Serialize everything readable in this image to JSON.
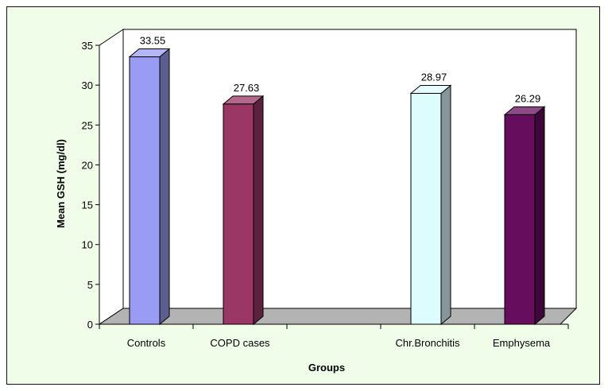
{
  "chart_data": {
    "type": "bar",
    "categories": [
      "Controls",
      "COPD cases",
      "",
      "Chr.Bronchitis",
      "Emphysema"
    ],
    "values": [
      33.55,
      27.63,
      null,
      28.97,
      26.29
    ],
    "value_labels": [
      "33.55",
      "27.63",
      "",
      "28.97",
      "26.29"
    ],
    "colors": [
      "#9a9cf4",
      "#9a3764",
      null,
      "#ddfcfd",
      "#660d5e"
    ],
    "title": "",
    "xlabel": "Groups",
    "ylabel": "Mean GSH (mg/dl)",
    "ylim": [
      0,
      35
    ],
    "yticks": [
      0,
      5,
      10,
      15,
      20,
      25,
      30,
      35
    ],
    "style": "3d",
    "grid": false,
    "legend": "none"
  }
}
